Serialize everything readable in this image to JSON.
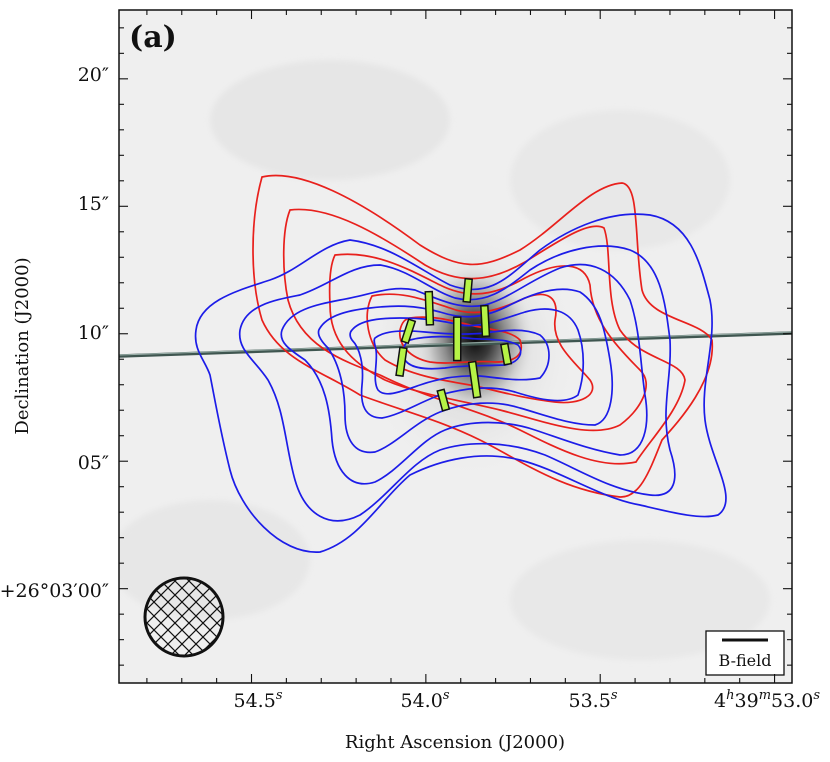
{
  "chart_data": {
    "type": "contour",
    "panel_label": "(a)",
    "xlabel": "Right Ascension (J2000)",
    "ylabel": "Declination (J2000)",
    "x_ticks": [
      {
        "value_s": 54.5,
        "label": "54.5",
        "sup": "s"
      },
      {
        "value_s": 54.0,
        "label": "54.0",
        "sup": "s"
      },
      {
        "value_s": 53.5,
        "label": "53.5",
        "sup": "s"
      },
      {
        "value_s": 53.0,
        "label": "4",
        "full": "4h39m53.0s"
      }
    ],
    "y_ticks": [
      {
        "value_arcsec": 20,
        "label": "20″"
      },
      {
        "value_arcsec": 15,
        "label": "15″"
      },
      {
        "value_arcsec": 10,
        "label": "10″"
      },
      {
        "value_arcsec": 5,
        "label": "05″"
      },
      {
        "value_arcsec": 0,
        "label": "+26°03′00″"
      }
    ],
    "xlim_s": [
      54.88,
      52.95
    ],
    "ylim_arcsec": [
      -3.7,
      22.7
    ],
    "beam": {
      "center_s": [
        54.69,
        53.2
      ],
      "center_arcsec": [
        -1.0
      ],
      "note": "hatched circular beam"
    },
    "legend": {
      "label": "B-field",
      "placement": "bottom-right"
    },
    "outflow_axis_line": {
      "color": "#3f5650",
      "from": [
        54.88,
        9.0
      ],
      "to": [
        52.95,
        9.9
      ]
    },
    "contours": {
      "red": {
        "color": "#e8201c",
        "levels": 5
      },
      "blue": {
        "color": "#1c1ce8",
        "levels": 7
      }
    },
    "bfield_segments_color": "#b6f346",
    "bfield_segments": [
      {
        "ra_s": 53.88,
        "dec_arcsec": 11.7,
        "angle_deg": 5,
        "length_arcsec": 0.9
      },
      {
        "ra_s": 53.99,
        "dec_arcsec": 11.0,
        "angle_deg": -2,
        "length_arcsec": 1.3
      },
      {
        "ra_s": 54.05,
        "dec_arcsec": 10.1,
        "angle_deg": 18,
        "length_arcsec": 0.9
      },
      {
        "ra_s": 53.91,
        "dec_arcsec": 9.8,
        "angle_deg": 0,
        "length_arcsec": 1.7
      },
      {
        "ra_s": 53.83,
        "dec_arcsec": 10.5,
        "angle_deg": -3,
        "length_arcsec": 1.2
      },
      {
        "ra_s": 54.07,
        "dec_arcsec": 8.9,
        "angle_deg": 8,
        "length_arcsec": 1.1
      },
      {
        "ra_s": 53.86,
        "dec_arcsec": 8.2,
        "angle_deg": -8,
        "length_arcsec": 1.4
      },
      {
        "ra_s": 53.77,
        "dec_arcsec": 9.2,
        "angle_deg": -10,
        "length_arcsec": 0.8
      },
      {
        "ra_s": 53.95,
        "dec_arcsec": 7.4,
        "angle_deg": -15,
        "length_arcsec": 0.8
      }
    ]
  }
}
